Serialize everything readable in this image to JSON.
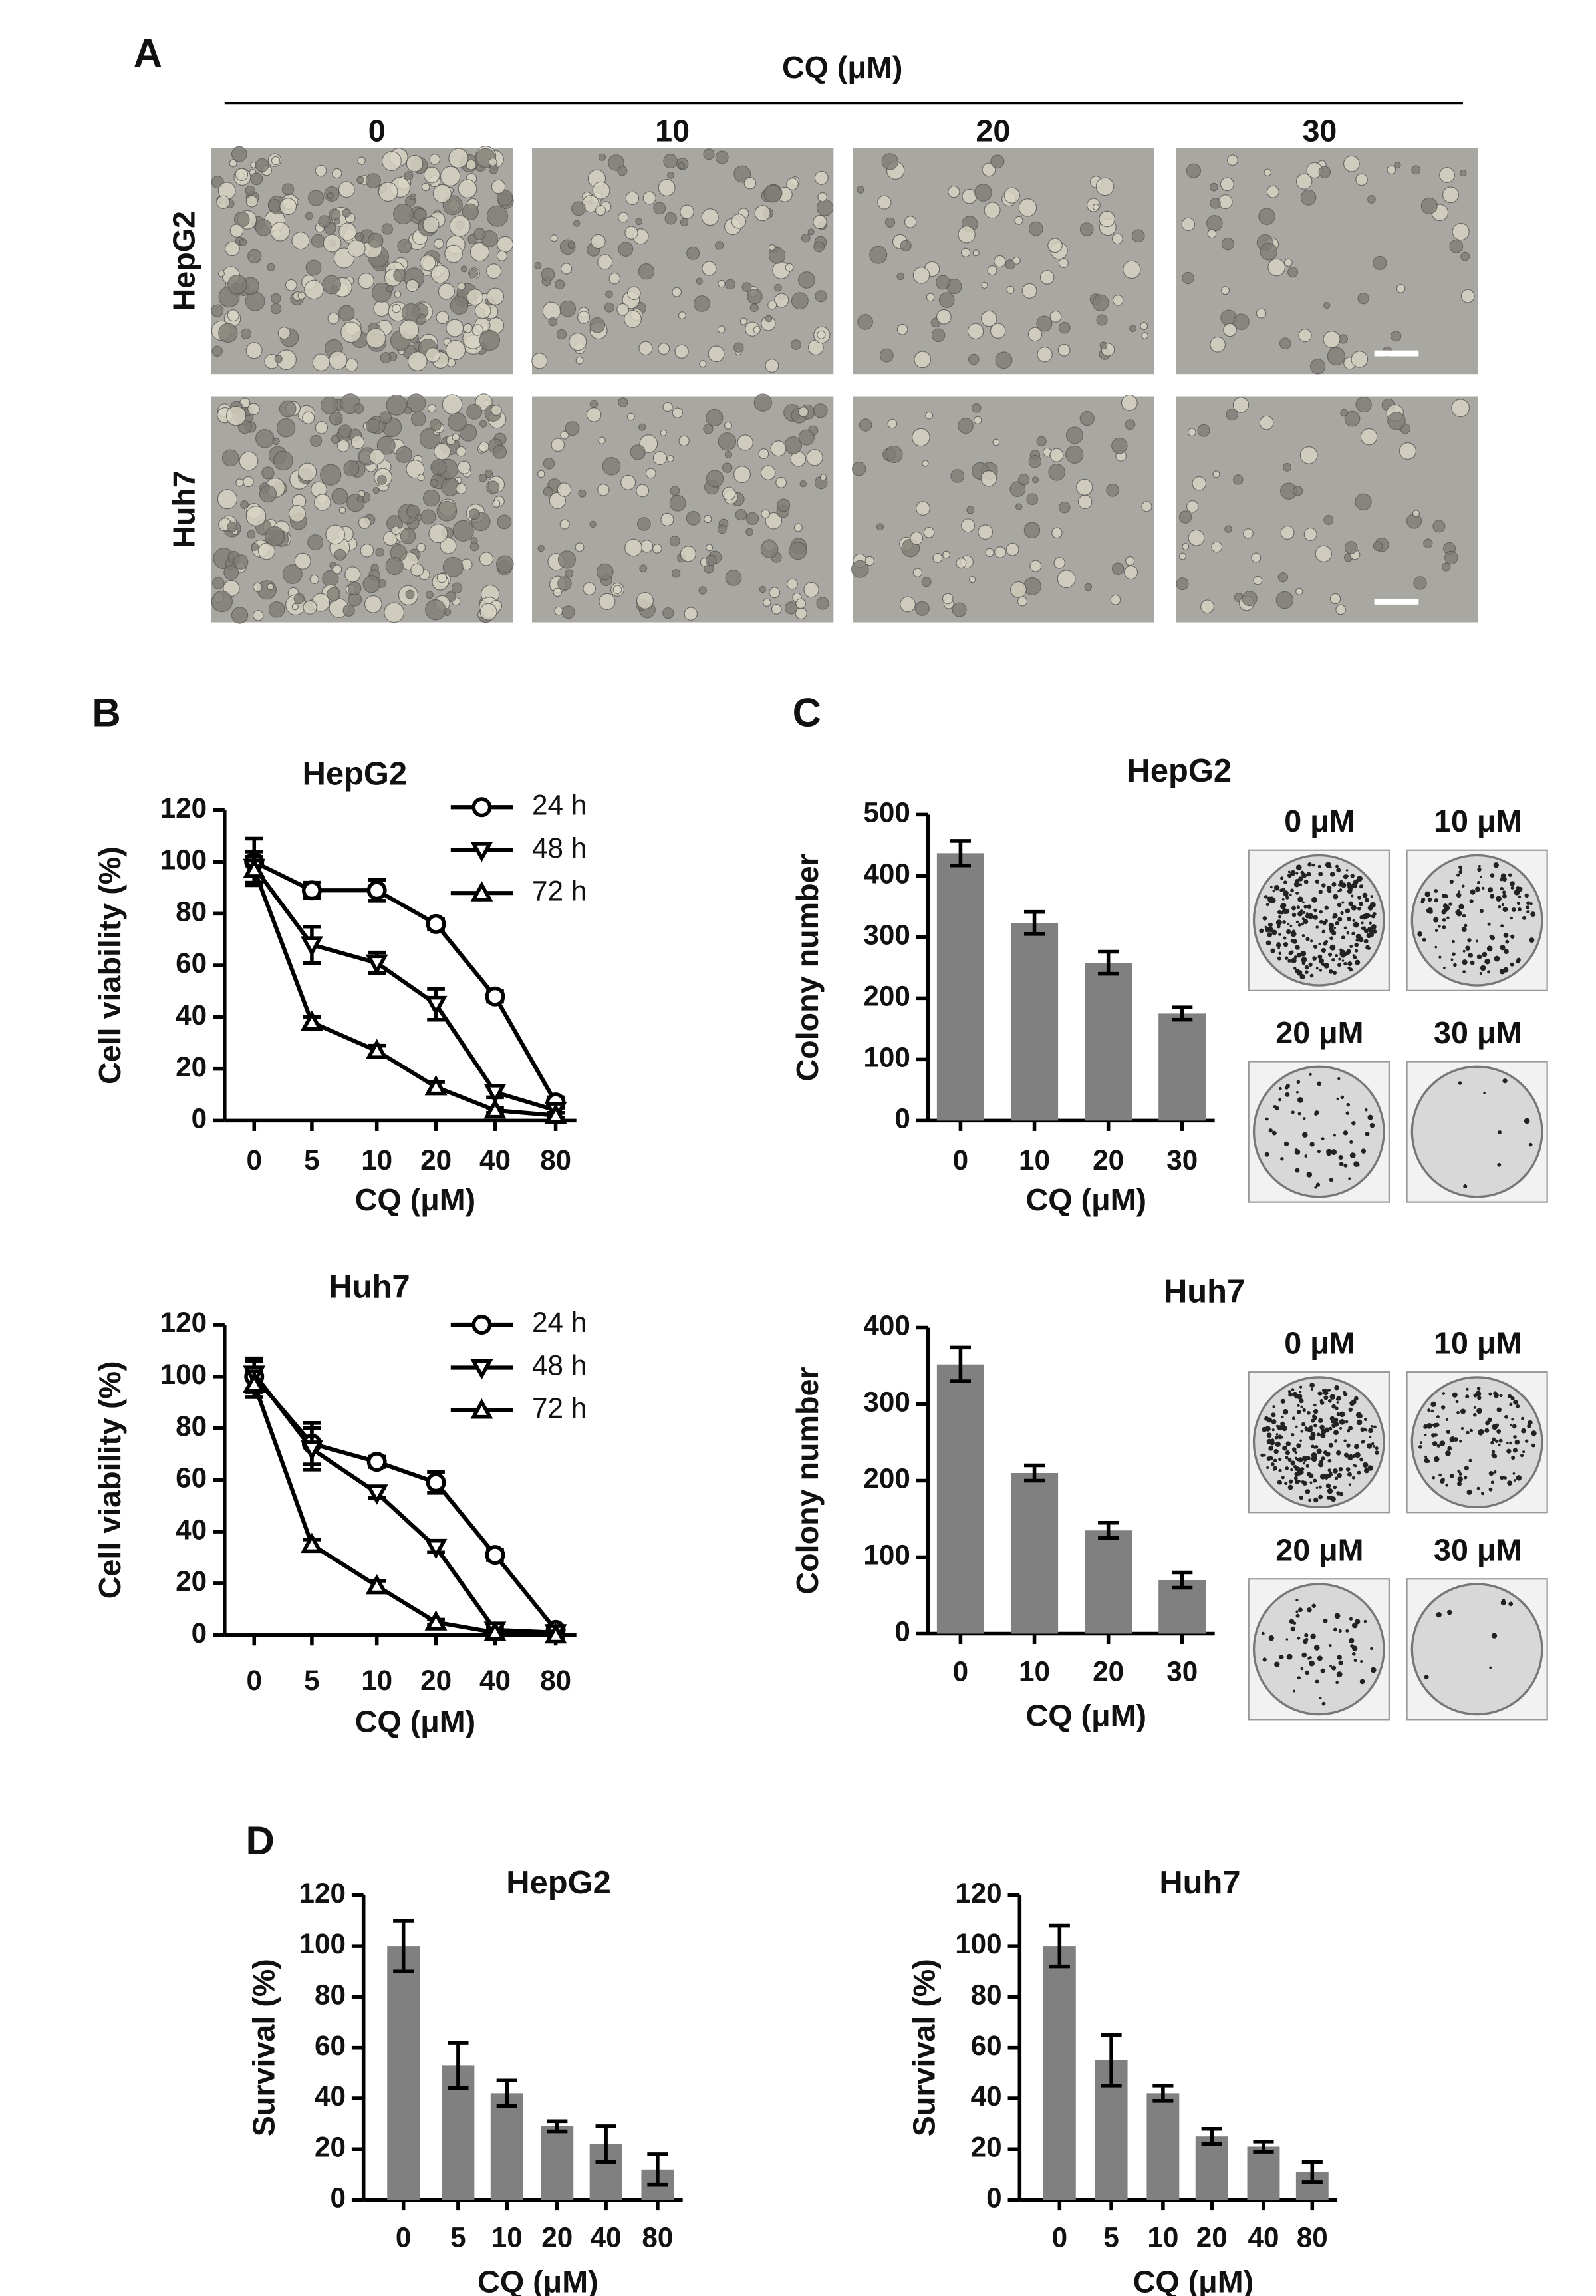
{
  "panel_labels": [
    "A",
    "B",
    "C",
    "D"
  ],
  "image_grid": {
    "header": "CQ (μM)",
    "columns": [
      "0",
      "10",
      "20",
      "30"
    ],
    "rows": [
      "HepG2",
      "Huh7"
    ]
  },
  "plates": [
    {
      "labels": [
        "0 μM",
        "10 μM",
        "20 μM",
        "30 μM"
      ]
    },
    {
      "labels": [
        "0 μM",
        "10 μM",
        "20 μM",
        "30 μM"
      ]
    }
  ],
  "chart_data": [
    {
      "type": "line",
      "title": "HepG2",
      "xlabel": "CQ (μM)",
      "ylabel": "Cell viability (%)",
      "categories": [
        "0",
        "5",
        "10",
        "20",
        "40",
        "80"
      ],
      "ylim": [
        0,
        120
      ],
      "yticks": [
        0,
        20,
        40,
        60,
        80,
        100,
        120
      ],
      "series": [
        {
          "name": "24 h",
          "color": "#000000",
          "marker": "o",
          "values": [
            100,
            89,
            89,
            76,
            48,
            7
          ],
          "errors": [
            9,
            3,
            4,
            2,
            2,
            2
          ]
        },
        {
          "name": "48 h",
          "color": "#000000",
          "marker": "v",
          "values": [
            98,
            68,
            61,
            45,
            11,
            4
          ],
          "errors": [
            6,
            7,
            4,
            6,
            2,
            1
          ]
        },
        {
          "name": "72 h",
          "color": "#000000",
          "marker": "^",
          "values": [
            97,
            38,
            27,
            13,
            4,
            2
          ],
          "errors": [
            5,
            2,
            2,
            2,
            1,
            1
          ]
        }
      ]
    },
    {
      "type": "line",
      "title": "Huh7",
      "xlabel": "CQ (μM)",
      "ylabel": "Cell viability (%)",
      "categories": [
        "0",
        "5",
        "10",
        "20",
        "40",
        "80"
      ],
      "ylim": [
        0,
        120
      ],
      "yticks": [
        0,
        20,
        40,
        60,
        80,
        100,
        120
      ],
      "series": [
        {
          "name": "24 h",
          "color": "#000000",
          "marker": "o",
          "values": [
            100,
            74,
            67,
            59,
            31,
            2
          ],
          "errors": [
            6,
            8,
            2,
            4,
            2,
            1
          ]
        },
        {
          "name": "48 h",
          "color": "#000000",
          "marker": "v",
          "values": [
            101,
            72,
            55,
            34,
            2,
            1
          ],
          "errors": [
            6,
            8,
            2,
            2,
            1,
            1
          ]
        },
        {
          "name": "72 h",
          "color": "#000000",
          "marker": "^",
          "values": [
            97,
            35,
            19,
            5,
            1,
            0
          ],
          "errors": [
            5,
            2,
            2,
            1,
            1,
            1
          ]
        }
      ]
    },
    {
      "type": "bar",
      "title": "HepG2",
      "xlabel": "CQ (μM)",
      "ylabel": "Colony number",
      "categories": [
        "0",
        "10",
        "20",
        "30"
      ],
      "values": [
        437,
        323,
        258,
        175
      ],
      "errors": [
        20,
        18,
        18,
        10
      ],
      "color": "#808080",
      "ylim": [
        0,
        500
      ],
      "yticks": [
        0,
        100,
        200,
        300,
        400,
        500
      ]
    },
    {
      "type": "bar",
      "title": "Huh7",
      "xlabel": "CQ (μM)",
      "ylabel": "Colony number",
      "categories": [
        "0",
        "10",
        "20",
        "30"
      ],
      "values": [
        352,
        210,
        135,
        70
      ],
      "errors": [
        22,
        10,
        10,
        10
      ],
      "color": "#808080",
      "ylim": [
        0,
        400
      ],
      "yticks": [
        0,
        100,
        200,
        300,
        400
      ]
    },
    {
      "type": "bar",
      "title": "HepG2",
      "xlabel": "CQ (μM)",
      "ylabel": "Survival (%)",
      "categories": [
        "0",
        "5",
        "10",
        "20",
        "40",
        "80"
      ],
      "values": [
        100,
        53,
        42,
        29,
        22,
        12
      ],
      "errors": [
        10,
        9,
        5,
        2,
        7,
        6
      ],
      "color": "#808080",
      "ylim": [
        0,
        120
      ],
      "yticks": [
        0,
        20,
        40,
        60,
        80,
        100,
        120
      ]
    },
    {
      "type": "bar",
      "title": "Huh7",
      "xlabel": "CQ (μM)",
      "ylabel": "Survival (%)",
      "categories": [
        "0",
        "5",
        "10",
        "20",
        "40",
        "80"
      ],
      "values": [
        100,
        55,
        42,
        25,
        21,
        11
      ],
      "errors": [
        8,
        10,
        3,
        3,
        2,
        4
      ],
      "color": "#808080",
      "ylim": [
        0,
        120
      ],
      "yticks": [
        0,
        20,
        40,
        60,
        80,
        100,
        120
      ]
    }
  ]
}
